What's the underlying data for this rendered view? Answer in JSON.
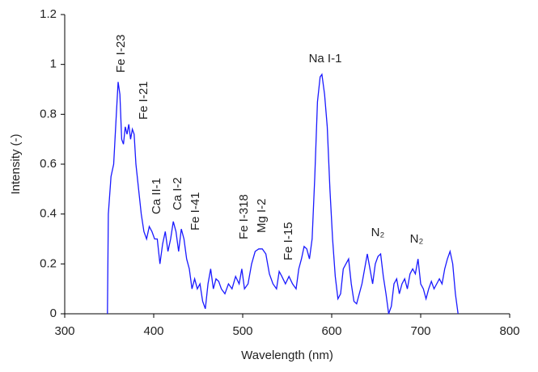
{
  "chart_data": {
    "type": "line",
    "xlabel": "Wavelength (nm)",
    "ylabel": "Intensity (-)",
    "color": "#1a1aff",
    "xlim": [
      300,
      800
    ],
    "xticks": [
      300,
      400,
      500,
      600,
      700,
      800
    ],
    "ylim": [
      0,
      1.2
    ],
    "yticks": [
      0,
      0.2,
      0.4,
      0.6,
      0.8,
      1,
      1.2
    ],
    "annotations": [
      "Fe I-23",
      "Fe I-21",
      "Ca II-1",
      "Ca I-2",
      "Fe I-41",
      "Fe I-318",
      "Mg I-2",
      "Fe I-15",
      "Na I-1",
      "N₂",
      "N₂"
    ],
    "x": [
      348,
      349,
      352,
      355,
      358,
      360,
      362,
      364,
      366,
      368,
      370,
      372,
      374,
      376,
      378,
      380,
      383,
      386,
      389,
      392,
      395,
      398,
      401,
      404,
      407,
      410,
      413,
      416,
      419,
      422,
      425,
      428,
      431,
      434,
      437,
      440,
      443,
      446,
      449,
      452,
      455,
      458,
      461,
      464,
      467,
      470,
      473,
      476,
      480,
      484,
      488,
      492,
      496,
      499,
      502,
      506,
      510,
      514,
      518,
      522,
      526,
      530,
      534,
      538,
      541,
      544,
      548,
      552,
      556,
      560,
      563,
      566,
      569,
      572,
      575,
      578,
      581,
      584,
      587,
      589,
      592,
      595,
      598,
      601,
      604,
      607,
      610,
      613,
      616,
      619,
      622,
      625,
      628,
      631,
      634,
      637,
      640,
      643,
      646,
      649,
      652,
      655,
      658,
      661,
      664,
      667,
      670,
      673,
      676,
      679,
      682,
      685,
      688,
      691,
      694,
      697,
      700,
      703,
      706,
      709,
      712,
      715,
      718,
      721,
      724,
      727,
      730,
      733,
      736,
      739,
      742
    ],
    "values": [
      0,
      0.4,
      0.55,
      0.6,
      0.8,
      0.93,
      0.88,
      0.7,
      0.68,
      0.75,
      0.72,
      0.76,
      0.7,
      0.74,
      0.72,
      0.6,
      0.5,
      0.4,
      0.33,
      0.3,
      0.35,
      0.33,
      0.3,
      0.3,
      0.2,
      0.28,
      0.33,
      0.25,
      0.3,
      0.37,
      0.33,
      0.25,
      0.34,
      0.3,
      0.22,
      0.18,
      0.1,
      0.14,
      0.1,
      0.12,
      0.05,
      0.02,
      0.12,
      0.18,
      0.1,
      0.14,
      0.13,
      0.1,
      0.08,
      0.12,
      0.1,
      0.15,
      0.12,
      0.18,
      0.1,
      0.12,
      0.2,
      0.25,
      0.26,
      0.26,
      0.24,
      0.16,
      0.12,
      0.1,
      0.17,
      0.15,
      0.12,
      0.15,
      0.12,
      0.1,
      0.18,
      0.22,
      0.27,
      0.26,
      0.22,
      0.3,
      0.55,
      0.85,
      0.95,
      0.96,
      0.88,
      0.75,
      0.5,
      0.3,
      0.15,
      0.06,
      0.08,
      0.18,
      0.2,
      0.22,
      0.12,
      0.05,
      0.04,
      0.08,
      0.12,
      0.18,
      0.24,
      0.18,
      0.12,
      0.2,
      0.23,
      0.24,
      0.15,
      0.08,
      0,
      0.03,
      0.12,
      0.14,
      0.08,
      0.12,
      0.14,
      0.1,
      0.16,
      0.18,
      0.16,
      0.22,
      0.12,
      0.1,
      0.06,
      0.1,
      0.13,
      0.1,
      0.12,
      0.14,
      0.12,
      0.18,
      0.22,
      0.25,
      0.2,
      0.08,
      0
    ]
  }
}
